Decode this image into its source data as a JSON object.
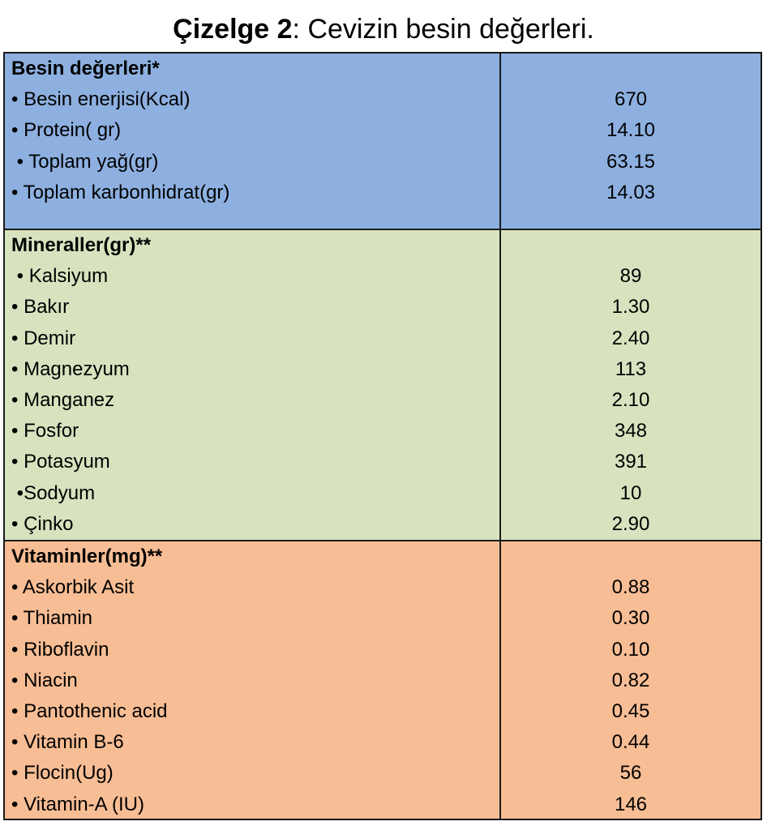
{
  "caption": {
    "bold": "Çizelge 2",
    "rest": ": Cevizin besin değerleri."
  },
  "sections": [
    {
      "heading": "Besin değerleri*",
      "rows": [
        {
          "label": "• Besin enerjisi(Kcal)",
          "value": "670"
        },
        {
          "label": "• Protein( gr)",
          "value": "14.10"
        },
        {
          "label": " • Toplam yağ(gr)",
          "value": "63.15"
        },
        {
          "label": "• Toplam karbonhidrat(gr)",
          "value": "14.03"
        }
      ]
    },
    {
      "heading": "Mineraller(gr)**",
      "rows": [
        {
          "label": " • Kalsiyum",
          "value": "89"
        },
        {
          "label": "• Bakır",
          "value": "1.30"
        },
        {
          "label": "• Demir",
          "value": "2.40"
        },
        {
          "label": "• Magnezyum",
          "value": "113"
        },
        {
          "label": "• Manganez",
          "value": "2.10"
        },
        {
          "label": "• Fosfor",
          "value": "348"
        },
        {
          "label": "• Potasyum",
          "value": "391"
        },
        {
          "label": " •Sodyum",
          "value": "10"
        },
        {
          "label": "• Çinko",
          "value": "2.90"
        }
      ]
    },
    {
      "heading": "Vitaminler(mg)**",
      "rows": [
        {
          "label": "• Askorbik Asit",
          "value": "0.88"
        },
        {
          "label": "• Thiamin",
          "value": "0.30"
        },
        {
          "label": "• Riboflavin",
          "value": "0.10"
        },
        {
          "label": "• Niacin",
          "value": "0.82"
        },
        {
          "label": "• Pantothenic acid",
          "value": "0.45"
        },
        {
          "label": "• Vitamin B-6",
          "value": "0.44"
        },
        {
          "label": "• Flocin(Ug)",
          "value": "56"
        },
        {
          "label": "• Vitamin-A (IU)",
          "value": "146"
        }
      ]
    }
  ],
  "colors": {
    "nutrition": "#8db0e0",
    "minerals": "#d7e3bf",
    "vitamins": "#f7bd94"
  }
}
